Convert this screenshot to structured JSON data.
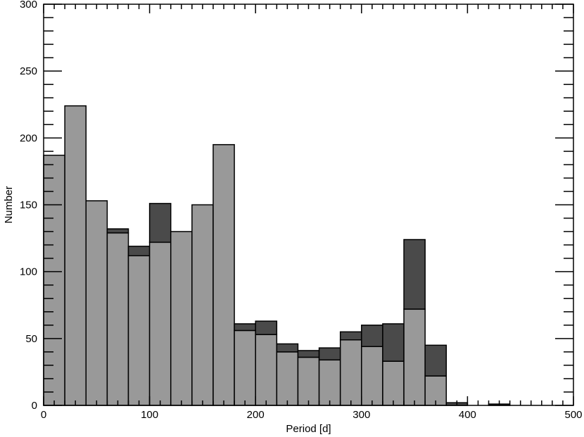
{
  "chart_data": {
    "type": "bar",
    "subtype": "stacked-histogram",
    "title": "",
    "xlabel": "Period [d]",
    "ylabel": "Number",
    "xlim": [
      0,
      500
    ],
    "ylim": [
      0,
      300
    ],
    "x_ticks": [
      0,
      100,
      200,
      300,
      400,
      500
    ],
    "y_ticks": [
      0,
      50,
      100,
      150,
      200,
      250,
      300
    ],
    "x_minor_step": 10,
    "y_minor_step": 10,
    "grid": false,
    "bin_width": 20,
    "bin_starts": [
      0,
      20,
      40,
      60,
      80,
      100,
      120,
      140,
      160,
      180,
      200,
      220,
      240,
      260,
      280,
      300,
      320,
      340,
      360,
      380,
      400,
      420,
      440,
      460,
      480
    ],
    "series": [
      {
        "color": "#999999",
        "values": [
          187,
          224,
          153,
          129,
          112,
          122,
          130,
          150,
          195,
          56,
          53,
          40,
          36,
          34,
          49,
          44,
          33,
          72,
          22,
          0,
          0,
          0,
          0,
          0,
          0
        ]
      },
      {
        "color": "#4a4a4a",
        "values": [
          0,
          0,
          0,
          3,
          7,
          29,
          0,
          0,
          0,
          5,
          10,
          6,
          5,
          9,
          6,
          16,
          28,
          52,
          23,
          2,
          0,
          1,
          0,
          0,
          0
        ]
      }
    ]
  }
}
